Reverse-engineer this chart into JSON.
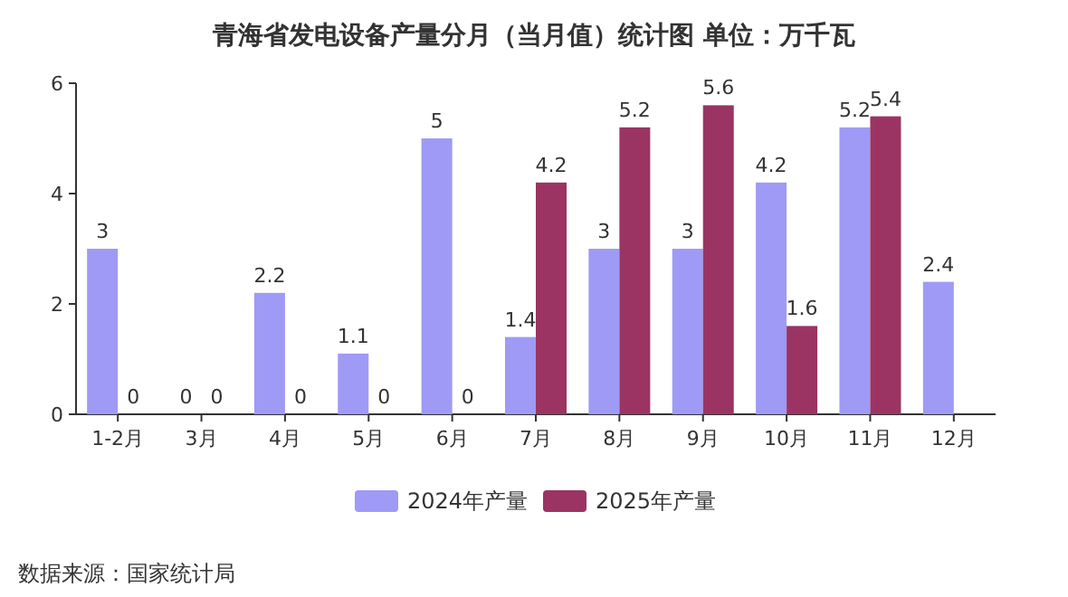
{
  "chart_data": {
    "type": "bar",
    "title": "青海省发电设备产量分月（当月值）统计图 单位：万千瓦",
    "categories": [
      "1-2月",
      "3月",
      "4月",
      "5月",
      "6月",
      "7月",
      "8月",
      "9月",
      "10月",
      "11月",
      "12月"
    ],
    "series": [
      {
        "name": "2024年产量",
        "color": "#9f9af5",
        "values": [
          3,
          0,
          2.2,
          1.1,
          5,
          1.4,
          3,
          3,
          4.2,
          5.2,
          2.4
        ]
      },
      {
        "name": "2025年产量",
        "color": "#9b3462",
        "values": [
          0,
          0,
          0,
          0,
          0,
          4.2,
          5.2,
          5.6,
          1.6,
          5.4,
          null
        ]
      }
    ],
    "ylim": [
      0,
      6
    ],
    "yticks": [
      0,
      2,
      4,
      6
    ],
    "data_labels": true,
    "legend": "bottom",
    "annotations": [
      "数据来源：国家统计局"
    ]
  }
}
